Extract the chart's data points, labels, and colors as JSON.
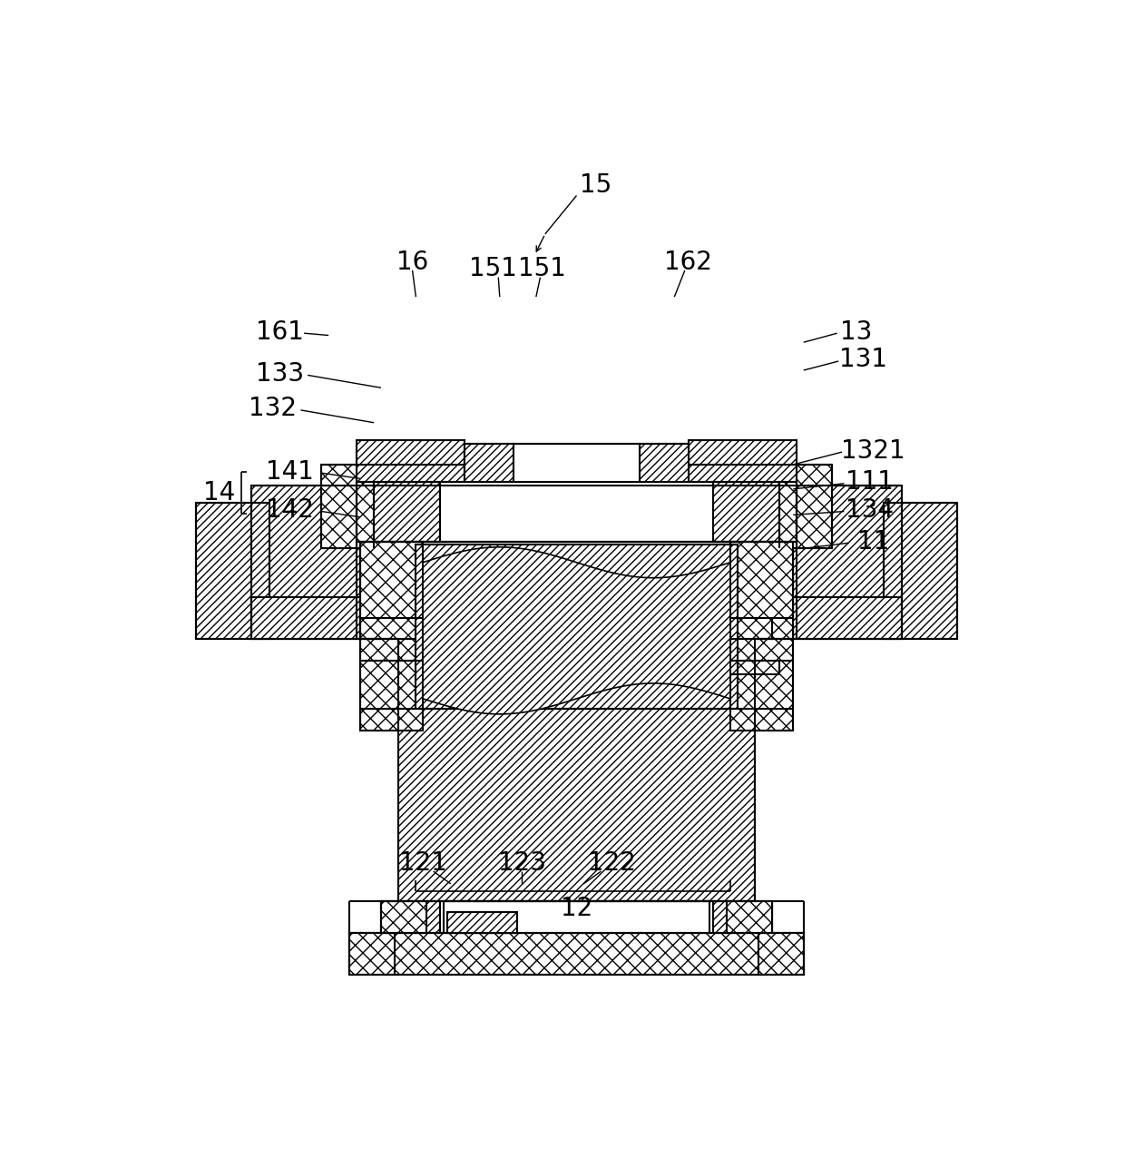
{
  "bg_color": "#ffffff",
  "line_color": "#000000",
  "fig_width": 12.4,
  "fig_height": 12.76
}
